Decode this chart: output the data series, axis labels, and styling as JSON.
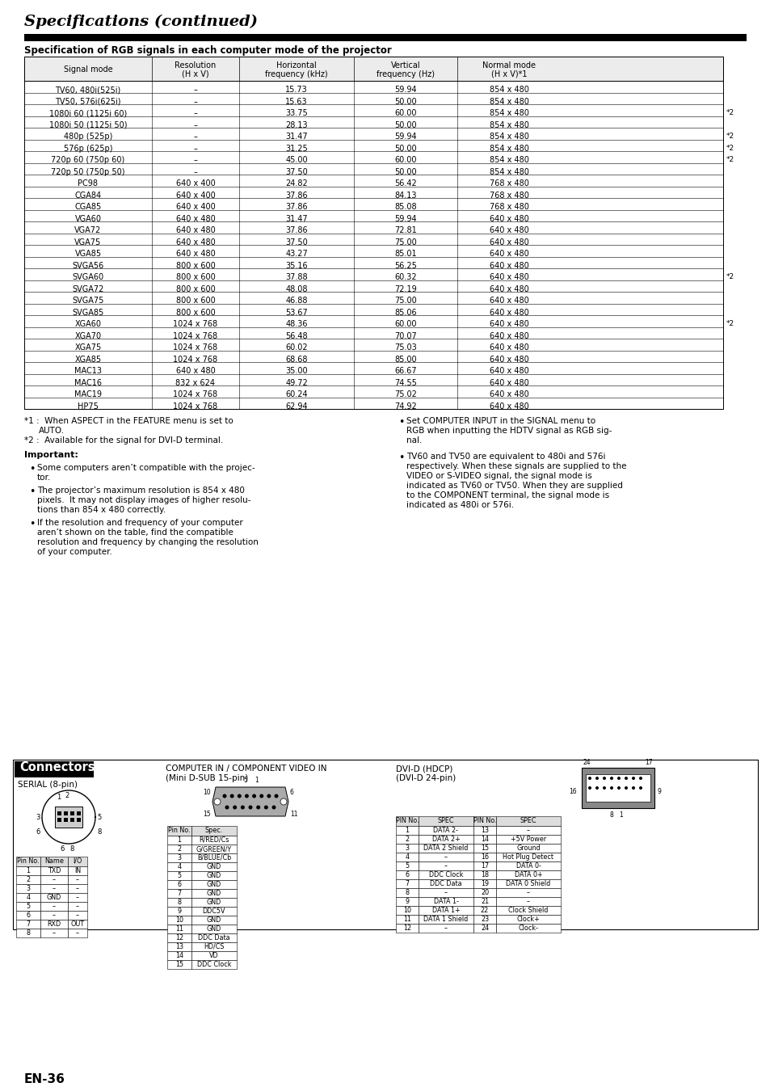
{
  "title": "Specifications (continued)",
  "section_title": "Specification of RGB signals in each computer mode of the projector",
  "table_headers": [
    "Signal mode",
    "Resolution\n(H x V)",
    "Horizontal\nfrequency (kHz)",
    "Vertical\nfrequency (Hz)",
    "Normal mode\n(H x V)*1"
  ],
  "table_data": [
    [
      "TV60, 480i(525i)",
      "–",
      "15.73",
      "59.94",
      "854 x 480",
      ""
    ],
    [
      "TV50, 576i(625i)",
      "–",
      "15.63",
      "50.00",
      "854 x 480",
      ""
    ],
    [
      "1080i 60 (1125i 60)",
      "–",
      "33.75",
      "60.00",
      "854 x 480",
      "*2"
    ],
    [
      "1080i 50 (1125i 50)",
      "–",
      "28.13",
      "50.00",
      "854 x 480",
      ""
    ],
    [
      "480p (525p)",
      "–",
      "31.47",
      "59.94",
      "854 x 480",
      "*2"
    ],
    [
      "576p (625p)",
      "–",
      "31.25",
      "50.00",
      "854 x 480",
      "*2"
    ],
    [
      "720p 60 (750p 60)",
      "–",
      "45.00",
      "60.00",
      "854 x 480",
      "*2"
    ],
    [
      "720p 50 (750p 50)",
      "–",
      "37.50",
      "50.00",
      "854 x 480",
      ""
    ],
    [
      "PC98",
      "640 x 400",
      "24.82",
      "56.42",
      "768 x 480",
      ""
    ],
    [
      "CGA84",
      "640 x 400",
      "37.86",
      "84.13",
      "768 x 480",
      ""
    ],
    [
      "CGA85",
      "640 x 400",
      "37.86",
      "85.08",
      "768 x 480",
      ""
    ],
    [
      "VGA60",
      "640 x 480",
      "31.47",
      "59.94",
      "640 x 480",
      ""
    ],
    [
      "VGA72",
      "640 x 480",
      "37.86",
      "72.81",
      "640 x 480",
      ""
    ],
    [
      "VGA75",
      "640 x 480",
      "37.50",
      "75.00",
      "640 x 480",
      ""
    ],
    [
      "VGA85",
      "640 x 480",
      "43.27",
      "85.01",
      "640 x 480",
      ""
    ],
    [
      "SVGA56",
      "800 x 600",
      "35.16",
      "56.25",
      "640 x 480",
      ""
    ],
    [
      "SVGA60",
      "800 x 600",
      "37.88",
      "60.32",
      "640 x 480",
      "*2"
    ],
    [
      "SVGA72",
      "800 x 600",
      "48.08",
      "72.19",
      "640 x 480",
      ""
    ],
    [
      "SVGA75",
      "800 x 600",
      "46.88",
      "75.00",
      "640 x 480",
      ""
    ],
    [
      "SVGA85",
      "800 x 600",
      "53.67",
      "85.06",
      "640 x 480",
      ""
    ],
    [
      "XGA60",
      "1024 x 768",
      "48.36",
      "60.00",
      "640 x 480",
      "*2"
    ],
    [
      "XGA70",
      "1024 x 768",
      "56.48",
      "70.07",
      "640 x 480",
      ""
    ],
    [
      "XGA75",
      "1024 x 768",
      "60.02",
      "75.03",
      "640 x 480",
      ""
    ],
    [
      "XGA85",
      "1024 x 768",
      "68.68",
      "85.00",
      "640 x 480",
      ""
    ],
    [
      "MAC13",
      "640 x 480",
      "35.00",
      "66.67",
      "640 x 480",
      ""
    ],
    [
      "MAC16",
      "832 x 624",
      "49.72",
      "74.55",
      "640 x 480",
      ""
    ],
    [
      "MAC19",
      "1024 x 768",
      "60.24",
      "75.02",
      "640 x 480",
      ""
    ],
    [
      "HP75",
      "1024 x 768",
      "62.94",
      "74.92",
      "640 x 480",
      ""
    ]
  ],
  "footnote1_a": "*1 :  When ASPECT in the FEATURE menu is set to",
  "footnote1_b": "AUTO.",
  "footnote2": "*2 :  Available for the signal for DVI-D terminal.",
  "important_title": "Important:",
  "important_bullets": [
    [
      "Some computers aren’t compatible with the projec-",
      "tor."
    ],
    [
      "The projector’s maximum resolution is 854 x 480",
      "pixels.  It may not display images of higher resolu-",
      "tions than 854 x 480 correctly."
    ],
    [
      "If the resolution and frequency of your computer",
      "aren’t shown on the table, find the compatible",
      "resolution and frequency by changing the resolution",
      "of your computer."
    ]
  ],
  "right_bullets": [
    [
      "Set COMPUTER INPUT in the SIGNAL menu to",
      "RGB when inputting the HDTV signal as RGB sig-",
      "nal."
    ],
    [
      "TV60 and TV50 are equivalent to 480i and 576i",
      "respectively. When these signals are supplied to the",
      "VIDEO or S-VIDEO signal, the signal mode is",
      "indicated as TV60 or TV50. When they are supplied",
      "to the COMPONENT terminal, the signal mode is",
      "indicated as 480i or 576i."
    ]
  ],
  "connectors_title": "Connectors",
  "serial_label": "SERIAL (8-pin)",
  "computer_in_label1": "COMPUTER IN / COMPONENT VIDEO IN",
  "computer_in_label2": "(Mini D-SUB 15-pin)",
  "dvi_label1": "DVI-D (HDCP)",
  "dvi_label2": "(DVI-D 24-pin)",
  "serial_pin_headers": [
    "Pin No.",
    "Name",
    "I/O"
  ],
  "serial_pin_data": [
    [
      "1",
      "TXD",
      "IN"
    ],
    [
      "2",
      "–",
      "–"
    ],
    [
      "3",
      "–",
      "–"
    ],
    [
      "4",
      "GND",
      "–"
    ],
    [
      "5",
      "–",
      "–"
    ],
    [
      "6",
      "–",
      "–"
    ],
    [
      "7",
      "RXD",
      "OUT"
    ],
    [
      "8",
      "–",
      "–"
    ]
  ],
  "comp_pin_headers": [
    "Pin No.",
    "Spec."
  ],
  "comp_pin_data": [
    [
      "1",
      "R/RED/Cs"
    ],
    [
      "2",
      "G/GREEN/Y"
    ],
    [
      "3",
      "B/BLUE/Cb"
    ],
    [
      "4",
      "GND"
    ],
    [
      "5",
      "GND"
    ],
    [
      "6",
      "GND"
    ],
    [
      "7",
      "GND"
    ],
    [
      "8",
      "GND"
    ],
    [
      "9",
      "DDC5V"
    ],
    [
      "10",
      "GND"
    ],
    [
      "11",
      "GND"
    ],
    [
      "12",
      "DDC Data"
    ],
    [
      "13",
      "HD/CS"
    ],
    [
      "14",
      "VD"
    ],
    [
      "15",
      "DDC Clock"
    ]
  ],
  "dvi_pin_headers": [
    "PIN No.",
    "SPEC",
    "PIN No.",
    "SPEC"
  ],
  "dvi_pin_data": [
    [
      "1",
      "DATA 2-",
      "13",
      "–"
    ],
    [
      "2",
      "DATA 2+",
      "14",
      "+5V Power"
    ],
    [
      "3",
      "DATA 2 Shield",
      "15",
      "Ground"
    ],
    [
      "4",
      "–",
      "16",
      "Hot Plug Detect"
    ],
    [
      "5",
      "–",
      "17",
      "DATA 0-"
    ],
    [
      "6",
      "DDC Clock",
      "18",
      "DATA 0+"
    ],
    [
      "7",
      "DDC Data",
      "19",
      "DATA 0 Shield"
    ],
    [
      "8",
      "–",
      "20",
      "–"
    ],
    [
      "9",
      "DATA 1-",
      "21",
      "–"
    ],
    [
      "10",
      "DATA 1+",
      "22",
      "Clock Shield"
    ],
    [
      "11",
      "DATA 1 Shield",
      "23",
      "Clock+"
    ],
    [
      "12",
      "–",
      "24",
      "Clock-"
    ]
  ],
  "page_label": "EN-36",
  "bg_color": "#ffffff"
}
